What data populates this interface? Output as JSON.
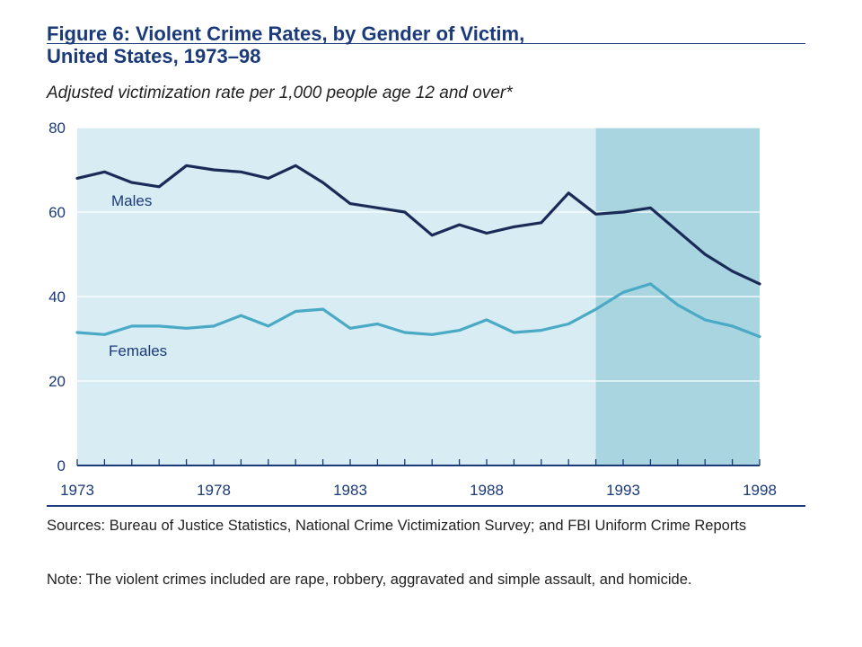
{
  "chart_data": {
    "type": "line",
    "title_line1": "Figure 6: Violent Crime Rates, by Gender of Victim,",
    "title_line2": "United States, 1973–98",
    "subtitle": "Adjusted victimization rate per 1,000 people age 12 and over*",
    "x": [
      1973,
      1974,
      1975,
      1976,
      1977,
      1978,
      1979,
      1980,
      1981,
      1982,
      1983,
      1984,
      1985,
      1986,
      1987,
      1988,
      1989,
      1990,
      1991,
      1992,
      1993,
      1994,
      1995,
      1996,
      1997,
      1998
    ],
    "x_ticks": [
      "1973",
      "1978",
      "1983",
      "1988",
      "1993",
      "1998"
    ],
    "y_ticks": [
      "0",
      "20",
      "40",
      "60",
      "80"
    ],
    "xlim": [
      1973,
      1998
    ],
    "ylim": [
      0,
      80
    ],
    "grid": true,
    "shaded_region": [
      1992,
      1998
    ],
    "series": [
      {
        "name": "Males",
        "color": "#1a2b58",
        "values": [
          68,
          69.5,
          67,
          66,
          71,
          70,
          69.5,
          68,
          71,
          67,
          62,
          61,
          60,
          54.5,
          57,
          55,
          56.5,
          57.5,
          64.5,
          59.5,
          60,
          61,
          55.5,
          50,
          46,
          43
        ]
      },
      {
        "name": "Females",
        "color": "#4aa9c4",
        "values": [
          31.5,
          31,
          33,
          33,
          32.5,
          33,
          35.5,
          33,
          36.5,
          37,
          32.5,
          33.5,
          31.5,
          31,
          32,
          34.5,
          31.5,
          32,
          33.5,
          37,
          41,
          43,
          38,
          34.5,
          33,
          30.5
        ]
      }
    ],
    "colors": {
      "plot_bg": "#d7edf3",
      "shade_bg": "#a9d5e0",
      "grid": "#ffffff",
      "axis": "#1b3a7a"
    }
  },
  "footer": {
    "sources": "Sources: Bureau of Justice Statistics, National Crime Victimization Survey; and FBI Uniform Crime Reports",
    "note": "Note: The violent crimes included are rape, robbery, aggravated and simple assault, and homicide."
  }
}
